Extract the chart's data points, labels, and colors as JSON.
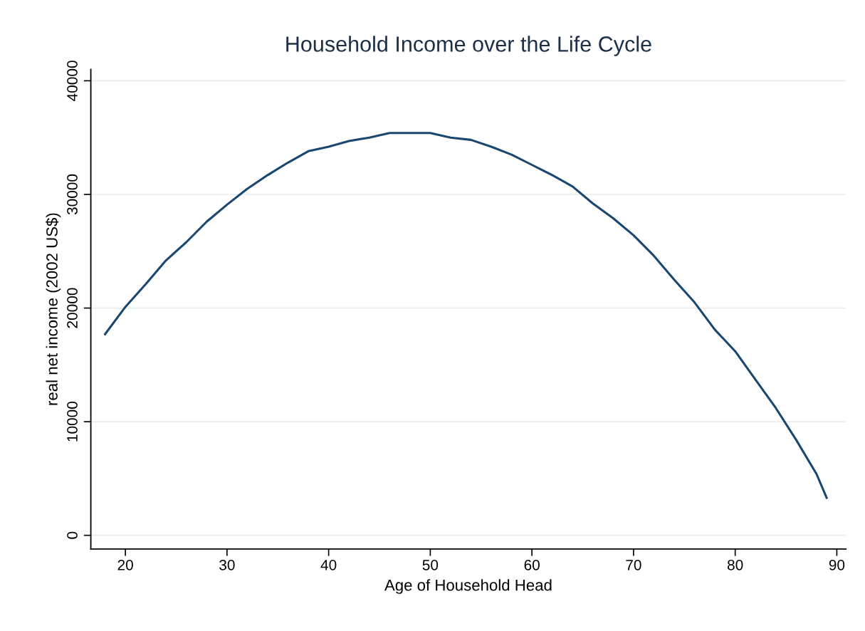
{
  "chart_data": {
    "type": "line",
    "title": "Household Income over the Life Cycle",
    "xlabel": "Age of Household Head",
    "ylabel": "real net income (2002 US$)",
    "x": [
      18,
      20,
      22,
      24,
      26,
      28,
      30,
      32,
      34,
      36,
      38,
      40,
      42,
      44,
      46,
      48,
      50,
      52,
      54,
      56,
      58,
      60,
      62,
      64,
      66,
      68,
      70,
      72,
      74,
      76,
      78,
      80,
      82,
      84,
      86,
      88,
      89
    ],
    "series": [
      {
        "color": "#1a476f",
        "values": [
          17700,
          20100,
          22100,
          24200,
          25800,
          27600,
          29100,
          30500,
          31700,
          32800,
          33800,
          34200,
          34700,
          35000,
          35400,
          35400,
          35400,
          35000,
          34800,
          34200,
          33500,
          32600,
          31700,
          30700,
          29200,
          27900,
          26400,
          24600,
          22500,
          20500,
          18100,
          16200,
          13700,
          11200,
          8400,
          5400,
          3300
        ]
      }
    ],
    "xlim": [
      16.6,
      90.9
    ],
    "ylim": [
      -1200,
      41000
    ],
    "xticks": [
      20,
      30,
      40,
      50,
      60,
      70,
      80,
      90
    ],
    "yticks": [
      0,
      10000,
      20000,
      30000,
      40000
    ],
    "grid": "y",
    "marker": "none",
    "line_style": "solid"
  }
}
